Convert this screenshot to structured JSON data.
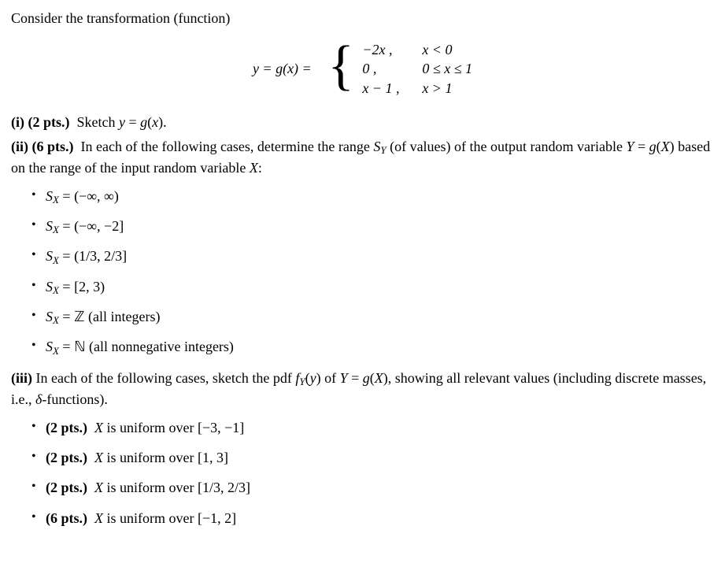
{
  "intro": "Consider the transformation (function)",
  "equation": {
    "lhs": "y  =  g(x)  =",
    "cases": [
      {
        "expr": "−2x ,",
        "cond": "x < 0"
      },
      {
        "expr": "0 ,",
        "cond": "0 ≤ x ≤ 1"
      },
      {
        "expr": "x − 1 ,",
        "cond": "x > 1"
      }
    ]
  },
  "parts": {
    "i": {
      "label": "(i) (2 pts.)",
      "text": "Sketch y = g(x)."
    },
    "ii": {
      "label": "(ii) (6 pts.)",
      "text_a": "In each of the following cases, determine the range ",
      "sy": "S",
      "sy_sub": "Y",
      "text_b": " (of values) of the output random variable Y = g(X) based on the range of the input random variable X:",
      "items": [
        "S_X = (−∞, ∞)",
        "S_X = (−∞, −2]",
        "S_X = (1/3, 2/3]",
        "S_X = [2, 3)",
        "S_X = ℤ (all integers)",
        "S_X = ℕ (all nonnegative integers)"
      ],
      "items_display": [
        {
          "pre": "S",
          "sub": "X",
          "post": " = (−∞, ∞)"
        },
        {
          "pre": "S",
          "sub": "X",
          "post": " = (−∞, −2]"
        },
        {
          "pre": "S",
          "sub": "X",
          "post": " = (1/3, 2/3]"
        },
        {
          "pre": "S",
          "sub": "X",
          "post": " = [2, 3)"
        },
        {
          "pre": "S",
          "sub": "X",
          "post_html": " = ℤ (all integers)"
        },
        {
          "pre": "S",
          "sub": "X",
          "post_html": " = ℕ (all nonnegative integers)"
        }
      ]
    },
    "iii": {
      "label": "(iii)",
      "text_a": "In each of the following cases, sketch the pdf ",
      "fy": "f",
      "fy_sub": "Y",
      "fy_arg": "(y)",
      "text_b": " of Y = g(X), showing all relevant values (including discrete masses, i.e., δ-functions).",
      "items": [
        {
          "pts": "(2 pts.)",
          "text": "X is uniform over [−3, −1]"
        },
        {
          "pts": "(2 pts.)",
          "text": "X is uniform over [1, 3]"
        },
        {
          "pts": "(2 pts.)",
          "text": "X is uniform over [1/3, 2/3]"
        },
        {
          "pts": "(6 pts.)",
          "text": "X is uniform over [−1, 2]"
        }
      ]
    }
  }
}
